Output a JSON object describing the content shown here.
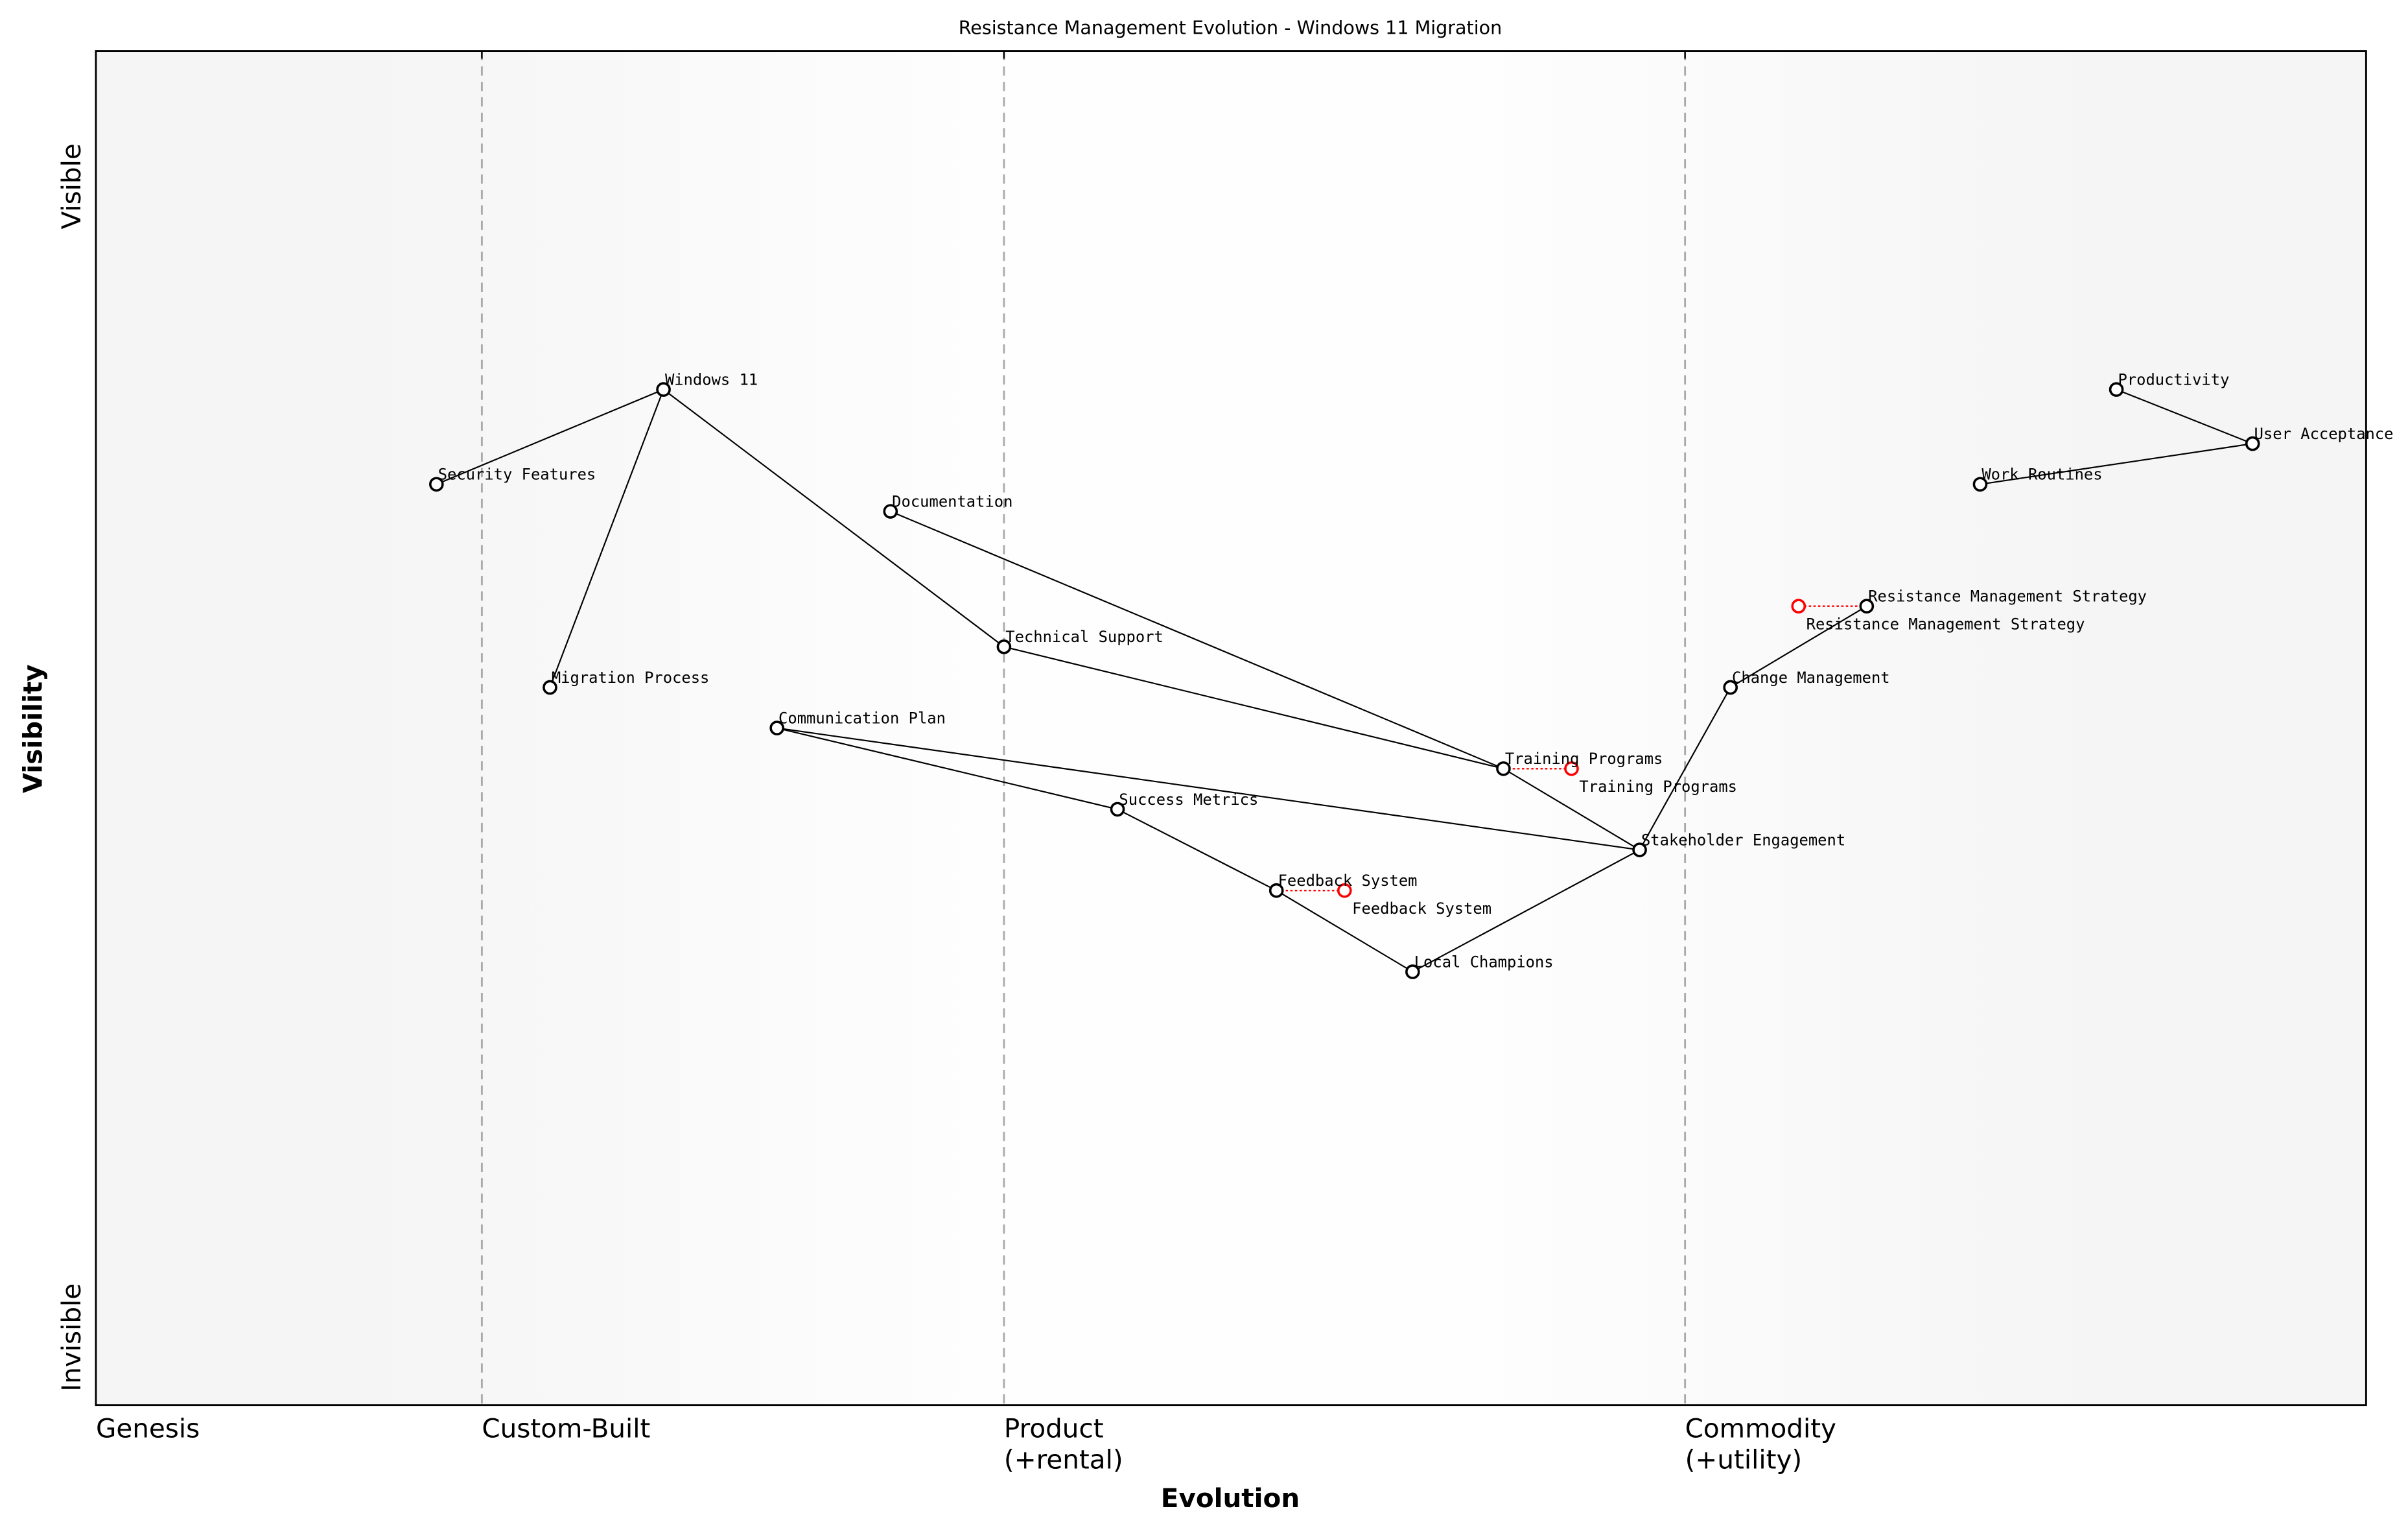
{
  "chart_data": {
    "type": "scatter",
    "title": "Resistance Management Evolution - Windows 11 Migration",
    "xlabel": "Evolution",
    "ylabel": "Visibility",
    "xlim": [
      0,
      1
    ],
    "ylim": [
      0,
      1
    ],
    "y_ticks": [
      {
        "label": "Invisible",
        "value": 0.05
      },
      {
        "label": "Visible",
        "value": 0.9
      }
    ],
    "x_stages": [
      {
        "label": "Genesis",
        "value": 0.0
      },
      {
        "label": "Custom-Built",
        "value": 0.17
      },
      {
        "label": "Product",
        "sub": "(+rental)",
        "value": 0.4
      },
      {
        "label": "Commodity",
        "sub": "(+utility)",
        "value": 0.7
      }
    ],
    "components": [
      {
        "name": "Windows 11",
        "x": 0.25,
        "y": 0.75
      },
      {
        "name": "Security Features",
        "x": 0.15,
        "y": 0.68
      },
      {
        "name": "Migration Process",
        "x": 0.2,
        "y": 0.53
      },
      {
        "name": "Documentation",
        "x": 0.35,
        "y": 0.66
      },
      {
        "name": "Technical Support",
        "x": 0.4,
        "y": 0.56
      },
      {
        "name": "Communication Plan",
        "x": 0.3,
        "y": 0.5
      },
      {
        "name": "Success Metrics",
        "x": 0.45,
        "y": 0.44
      },
      {
        "name": "Feedback System",
        "x": 0.52,
        "y": 0.38
      },
      {
        "name": "Local Champions",
        "x": 0.58,
        "y": 0.32
      },
      {
        "name": "Training Programs",
        "x": 0.62,
        "y": 0.47
      },
      {
        "name": "Stakeholder Engagement",
        "x": 0.68,
        "y": 0.41
      },
      {
        "name": "Change Management",
        "x": 0.72,
        "y": 0.53
      },
      {
        "name": "Resistance Management Strategy",
        "x": 0.78,
        "y": 0.59
      },
      {
        "name": "Work Routines",
        "x": 0.83,
        "y": 0.68
      },
      {
        "name": "User Acceptance",
        "x": 0.95,
        "y": 0.71
      },
      {
        "name": "Productivity",
        "x": 0.89,
        "y": 0.75
      }
    ],
    "links": [
      [
        "Security Features",
        "Windows 11"
      ],
      [
        "Windows 11",
        "Migration Process"
      ],
      [
        "Windows 11",
        "Technical Support"
      ],
      [
        "Technical Support",
        "Training Programs"
      ],
      [
        "Documentation",
        "Training Programs"
      ],
      [
        "Training Programs",
        "Stakeholder Engagement"
      ],
      [
        "Communication Plan",
        "Stakeholder Engagement"
      ],
      [
        "Communication Plan",
        "Success Metrics"
      ],
      [
        "Success Metrics",
        "Feedback System"
      ],
      [
        "Feedback System",
        "Local Champions"
      ],
      [
        "Local Champions",
        "Stakeholder Engagement"
      ],
      [
        "Stakeholder Engagement",
        "Change Management"
      ],
      [
        "Change Management",
        "Resistance Management Strategy"
      ],
      [
        "Productivity",
        "User Acceptance"
      ],
      [
        "Work Routines",
        "User Acceptance"
      ]
    ],
    "evolutions": [
      {
        "name": "Training Programs",
        "to_x": 0.65
      },
      {
        "name": "Feedback System",
        "to_x": 0.55
      },
      {
        "name": "Resistance Management Strategy",
        "to_x": 0.75
      }
    ],
    "colors": {
      "node": "#000000",
      "evolved": "#ff0000",
      "stage_line": "#aaaaaa",
      "edge_band": "#f5f5f5",
      "center_band": "#ffffff"
    }
  }
}
